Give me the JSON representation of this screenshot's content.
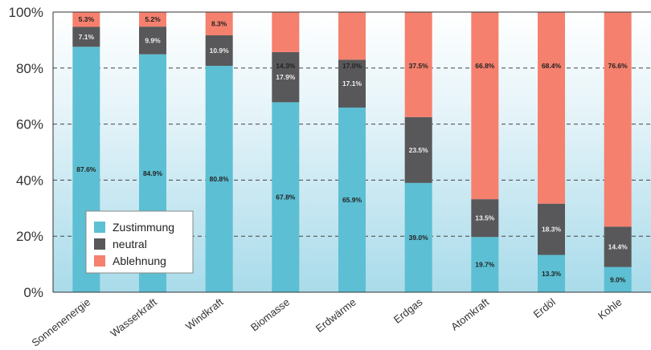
{
  "chart_data": {
    "type": "bar",
    "stacked": true,
    "categories": [
      "Sonnenenergie",
      "Wasserkraft",
      "Windkraft",
      "Biomasse",
      "Erdwärme",
      "Erdgas",
      "Atomkraft",
      "Erdöl",
      "Kohle"
    ],
    "series": [
      {
        "name": "Zustimmung",
        "color": "#5dbfd3",
        "values": [
          87.6,
          84.9,
          80.8,
          67.8,
          65.9,
          39.0,
          19.7,
          13.3,
          9.0
        ],
        "labels": [
          "87.6%",
          "84.9%",
          "80.8%",
          "67.8%",
          "65.9%",
          "39.0%",
          "19.7%",
          "13.3%",
          "9.0%"
        ]
      },
      {
        "name": "neutral",
        "color": "#58585a",
        "values": [
          7.1,
          9.9,
          10.9,
          17.9,
          17.1,
          23.5,
          13.5,
          18.3,
          14.4
        ],
        "labels": [
          "7.1%",
          "9.9%",
          "10.9%",
          "17.9%",
          "17.1%",
          "23.5%",
          "13.5%",
          "18.3%",
          "14.4%"
        ]
      },
      {
        "name": "Ablehnung",
        "color": "#f5806e",
        "values": [
          5.3,
          5.2,
          8.3,
          14.3,
          17.0,
          37.5,
          66.8,
          68.4,
          76.6
        ],
        "labels": [
          "5.3%",
          "5.2%",
          "8.3%",
          "14.3%",
          "17.0%",
          "37.5%",
          "66.8%",
          "68.4%",
          "76.6%"
        ]
      }
    ],
    "yticks": [
      "0%",
      "20%",
      "40%",
      "60%",
      "80%",
      "100%"
    ],
    "ylim": [
      0,
      100
    ],
    "grid": true,
    "legend": "bottom-left",
    "title": "",
    "xlabel": "",
    "ylabel": ""
  }
}
